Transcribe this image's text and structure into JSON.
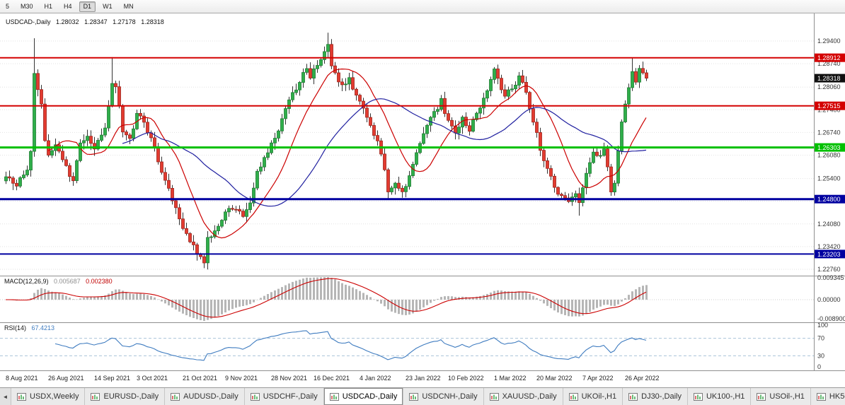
{
  "toolbar": {
    "timeframes": [
      {
        "label": "5",
        "active": false
      },
      {
        "label": "M30",
        "active": false
      },
      {
        "label": "H1",
        "active": false
      },
      {
        "label": "H4",
        "active": false
      },
      {
        "label": "D1",
        "active": true
      },
      {
        "label": "W1",
        "active": false
      },
      {
        "label": "MN",
        "active": false
      }
    ]
  },
  "chart_header": {
    "symbol": "USDCAD-,Daily",
    "open": "1.28032",
    "high": "1.28347",
    "low": "1.27178",
    "close": "1.28318"
  },
  "chart_data": {
    "type": "candlestick",
    "symbol": "USDCAD",
    "period": "Daily",
    "visible_range": {
      "price_top": 1.30202,
      "price_bottom": 1.22574
    },
    "candle_count": 182,
    "candle_waypoints": [
      [
        0,
        1.2545
      ],
      [
        3,
        1.2525
      ],
      [
        6,
        1.256
      ],
      [
        7,
        1.262
      ],
      [
        8,
        1.284
      ],
      [
        9,
        1.28
      ],
      [
        10,
        1.2755
      ],
      [
        11,
        1.265
      ],
      [
        12,
        1.2612
      ],
      [
        14,
        1.2638
      ],
      [
        16,
        1.2598
      ],
      [
        17,
        1.2572
      ],
      [
        19,
        1.2532
      ],
      [
        21,
        1.264
      ],
      [
        23,
        1.2662
      ],
      [
        25,
        1.2628
      ],
      [
        28,
        1.269
      ],
      [
        30,
        1.2818
      ],
      [
        31,
        1.2806
      ],
      [
        33,
        1.2682
      ],
      [
        35,
        1.2652
      ],
      [
        37,
        1.2728
      ],
      [
        39,
        1.27
      ],
      [
        41,
        1.2662
      ],
      [
        43,
        1.2592
      ],
      [
        45,
        1.2532
      ],
      [
        47,
        1.2482
      ],
      [
        49,
        1.2422
      ],
      [
        51,
        1.2382
      ],
      [
        53,
        1.2342
      ],
      [
        55,
        1.2312
      ],
      [
        56,
        1.2298
      ],
      [
        57,
        1.2362
      ],
      [
        59,
        1.2386
      ],
      [
        61,
        1.242
      ],
      [
        63,
        1.2452
      ],
      [
        65,
        1.2446
      ],
      [
        67,
        1.2432
      ],
      [
        69,
        1.2472
      ],
      [
        71,
        1.2556
      ],
      [
        73,
        1.2602
      ],
      [
        75,
        1.2636
      ],
      [
        77,
        1.2682
      ],
      [
        79,
        1.2746
      ],
      [
        81,
        1.2786
      ],
      [
        83,
        1.2822
      ],
      [
        85,
        1.2866
      ],
      [
        86,
        1.2832
      ],
      [
        88,
        1.2872
      ],
      [
        90,
        1.2906
      ],
      [
        91,
        1.2926
      ],
      [
        92,
        1.2872
      ],
      [
        93,
        1.2846
      ],
      [
        95,
        1.2806
      ],
      [
        97,
        1.2832
      ],
      [
        99,
        1.2776
      ],
      [
        101,
        1.2748
      ],
      [
        103,
        1.27
      ],
      [
        105,
        1.2642
      ],
      [
        107,
        1.2566
      ],
      [
        108,
        1.2506
      ],
      [
        110,
        1.2532
      ],
      [
        112,
        1.2496
      ],
      [
        114,
        1.2542
      ],
      [
        116,
        1.2612
      ],
      [
        118,
        1.2666
      ],
      [
        120,
        1.2712
      ],
      [
        122,
        1.2748
      ],
      [
        123,
        1.2766
      ],
      [
        125,
        1.2706
      ],
      [
        127,
        1.2672
      ],
      [
        129,
        1.2712
      ],
      [
        131,
        1.2682
      ],
      [
        133,
        1.2726
      ],
      [
        135,
        1.2766
      ],
      [
        137,
        1.2822
      ],
      [
        138,
        1.2858
      ],
      [
        139,
        1.2828
      ],
      [
        141,
        1.2782
      ],
      [
        143,
        1.2802
      ],
      [
        145,
        1.2836
      ],
      [
        147,
        1.2792
      ],
      [
        149,
        1.2706
      ],
      [
        151,
        1.2626
      ],
      [
        153,
        1.2566
      ],
      [
        155,
        1.2516
      ],
      [
        157,
        1.2486
      ],
      [
        159,
        1.2472
      ],
      [
        161,
        1.2496
      ],
      [
        162,
        1.2466
      ],
      [
        164,
        1.2556
      ],
      [
        166,
        1.2612
      ],
      [
        168,
        1.2602
      ],
      [
        169,
        1.2632
      ],
      [
        170,
        1.2566
      ],
      [
        171,
        1.2496
      ],
      [
        172,
        1.2526
      ],
      [
        173,
        1.2622
      ],
      [
        174,
        1.2706
      ],
      [
        175,
        1.2762
      ],
      [
        176,
        1.2806
      ],
      [
        177,
        1.2852
      ],
      [
        178,
        1.2822
      ],
      [
        179,
        1.2858
      ],
      [
        180,
        1.2842
      ],
      [
        181,
        1.28318
      ]
    ],
    "spikes": [
      {
        "i": 8,
        "high": 1.2948
      },
      {
        "i": 30,
        "high": 1.2893
      },
      {
        "i": 56,
        "low": 1.2288
      },
      {
        "i": 91,
        "high": 1.2964
      },
      {
        "i": 162,
        "low": 1.2432
      },
      {
        "i": 177,
        "high": 1.2891
      }
    ],
    "up_color": "#2fae4a",
    "up_border": "#1e7c33",
    "down_color": "#e23b30",
    "down_border": "#9e231b",
    "wick_color": "#333333",
    "moving_averages": [
      {
        "name": "fast",
        "period": 13,
        "color": "#cc0000"
      },
      {
        "name": "slow",
        "period": 34,
        "color": "#2020a0"
      }
    ],
    "levels": [
      {
        "price": 1.28912,
        "label": "1.28912",
        "color": "#d40000",
        "width": 2
      },
      {
        "price": 1.27515,
        "label": "1.27515",
        "color": "#d40000",
        "width": 2
      },
      {
        "price": 1.26303,
        "label": "1.26303",
        "color": "#00c000",
        "width": 3
      },
      {
        "price": 1.248,
        "label": "1.24800",
        "color": "#0000a0",
        "width": 3
      },
      {
        "price": 1.23203,
        "label": "1.23203",
        "color": "#0000a0",
        "width": 2
      }
    ],
    "last_price": {
      "value": 1.28318,
      "label": "1.28318",
      "box_color": "#111111"
    },
    "price_ticks": [
      {
        "label": "1.29400",
        "value": 1.294
      },
      {
        "label": "1.28740",
        "value": 1.2874
      },
      {
        "label": "1.28060",
        "value": 1.2806
      },
      {
        "label": "1.27400",
        "value": 1.274
      },
      {
        "label": "1.26740",
        "value": 1.2674
      },
      {
        "label": "1.26080",
        "value": 1.2608
      },
      {
        "label": "1.25400",
        "value": 1.254
      },
      {
        "label": "1.24740",
        "value": 1.2474
      },
      {
        "label": "1.24080",
        "value": 1.2408
      },
      {
        "label": "1.23420",
        "value": 1.2342
      },
      {
        "label": "1.22760",
        "value": 1.2276
      }
    ],
    "x_axis": {
      "labels": [
        "8 Aug 2021",
        "26 Aug 2021",
        "14 Sep 2021",
        "3 Oct 2021",
        "21 Oct 2021",
        "9 Nov 2021",
        "28 Nov 2021",
        "16 Dec 2021",
        "4 Jan 2022",
        "23 Jan 2022",
        "10 Feb 2022",
        "1 Mar 2022",
        "20 Mar 2022",
        "7 Apr 2022",
        "26 Apr 2022"
      ],
      "indices": [
        0,
        12,
        25,
        37,
        50,
        62,
        75,
        87,
        100,
        113,
        125,
        138,
        150,
        163,
        175
      ]
    },
    "macd": {
      "label": "MACD(12,26,9)",
      "value": "0.005687",
      "signal_value": "0.002380",
      "fast": 12,
      "slow": 26,
      "signal": 9,
      "axis_labels": [
        {
          "label": "0.009345",
          "value": 0.009345
        },
        {
          "label": "0.00000",
          "value": 0
        },
        {
          "label": "-0.008900",
          "value": -0.0089
        }
      ],
      "histogram_color": "#b6b6b6",
      "signal_color": "#cc0000"
    },
    "rsi": {
      "label": "RSI(14)",
      "value": "67.4213",
      "period": 14,
      "line_color": "#3f7cc0",
      "axis_labels": [
        {
          "label": "100",
          "value": 100
        },
        {
          "label": "70",
          "value": 70
        },
        {
          "label": "30",
          "value": 30
        },
        {
          "label": "0",
          "value": 0
        }
      ],
      "guide_levels": [
        70,
        30
      ]
    }
  },
  "tabs": {
    "scroll_left": "◄",
    "items": [
      {
        "label": "USDX,Weekly",
        "active": false
      },
      {
        "label": "EURUSD-,Daily",
        "active": false
      },
      {
        "label": "AUDUSD-,Daily",
        "active": false
      },
      {
        "label": "USDCHF-,Daily",
        "active": false
      },
      {
        "label": "USDCAD-,Daily",
        "active": true
      },
      {
        "label": "USDCNH-,Daily",
        "active": false
      },
      {
        "label": "XAUUSD-,Daily",
        "active": false
      },
      {
        "label": "UKOil-,H1",
        "active": false
      },
      {
        "label": "DJ30-,Daily",
        "active": false
      },
      {
        "label": "UK100-,H1",
        "active": false
      },
      {
        "label": "USOil-,H1",
        "active": false
      },
      {
        "label": "HK50-,H1",
        "active": false
      }
    ]
  }
}
